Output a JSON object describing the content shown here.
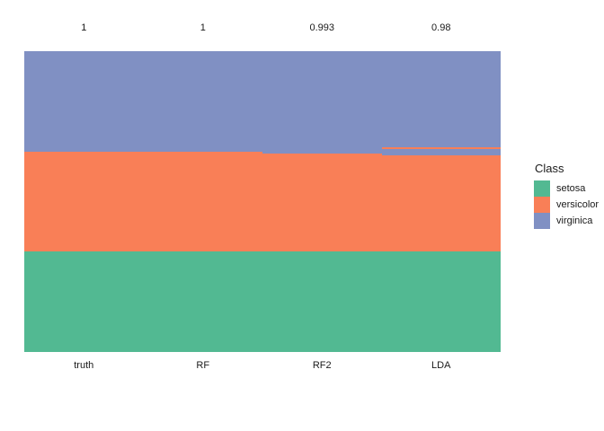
{
  "colors": {
    "setosa": "#52B992",
    "versicolor": "#F97F57",
    "virginica": "#8090C3",
    "background": "#FFFFFF",
    "text": "#1A1A1A"
  },
  "chart_data": {
    "type": "bar",
    "variant": "stacked-class-prediction-columns",
    "title": "",
    "xlabel": "",
    "ylabel": "",
    "grid": false,
    "total_per_column": 150,
    "categories": [
      "truth",
      "RF",
      "RF2",
      "LDA"
    ],
    "top_labels": [
      "1",
      "1",
      "0.993",
      "0.98"
    ],
    "legend": {
      "title": "Class",
      "position": "right",
      "entries": [
        "setosa",
        "versicolor",
        "virginica"
      ]
    },
    "columns": [
      {
        "name": "truth",
        "accuracy_label": "1",
        "segments": [
          {
            "class": "virginica",
            "n": 50
          },
          {
            "class": "versicolor",
            "n": 50
          },
          {
            "class": "setosa",
            "n": 50
          }
        ]
      },
      {
        "name": "RF",
        "accuracy_label": "1",
        "segments": [
          {
            "class": "virginica",
            "n": 50
          },
          {
            "class": "versicolor",
            "n": 50
          },
          {
            "class": "setosa",
            "n": 50
          }
        ]
      },
      {
        "name": "RF2",
        "accuracy_label": "0.993",
        "segments": [
          {
            "class": "virginica",
            "n": 51
          },
          {
            "class": "versicolor",
            "n": 49
          },
          {
            "class": "setosa",
            "n": 50
          }
        ]
      },
      {
        "name": "LDA",
        "accuracy_label": "0.98",
        "segments": [
          {
            "class": "virginica",
            "n": 48
          },
          {
            "class": "versicolor",
            "n": 1
          },
          {
            "class": "virginica",
            "n": 3
          },
          {
            "class": "versicolor",
            "n": 48
          },
          {
            "class": "setosa",
            "n": 50
          }
        ]
      }
    ]
  }
}
